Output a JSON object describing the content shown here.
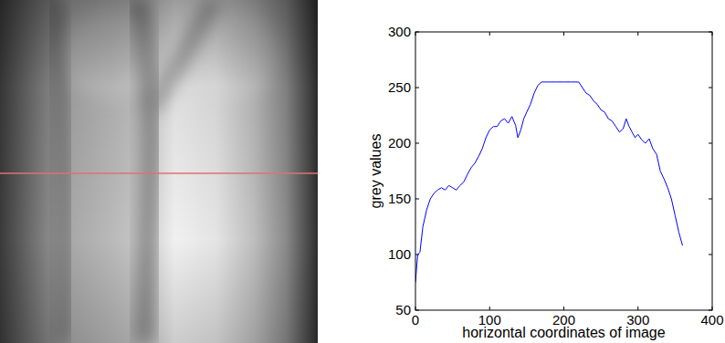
{
  "chart_data": {
    "type": "line",
    "xlabel": "horizontal coordinates of image",
    "ylabel": "grey values",
    "x": [
      0,
      3,
      6,
      10,
      15,
      20,
      25,
      30,
      35,
      40,
      45,
      50,
      55,
      60,
      65,
      70,
      75,
      80,
      85,
      90,
      95,
      100,
      105,
      110,
      115,
      120,
      125,
      130,
      135,
      138,
      142,
      146,
      150,
      155,
      160,
      165,
      170,
      175,
      180,
      190,
      200,
      210,
      220,
      225,
      230,
      235,
      240,
      245,
      250,
      255,
      260,
      265,
      270,
      275,
      280,
      284,
      288,
      292,
      296,
      300,
      305,
      310,
      315,
      320,
      325,
      330,
      335,
      340,
      345,
      350,
      355,
      360
    ],
    "values": [
      75,
      100,
      102,
      125,
      140,
      150,
      155,
      158,
      160,
      158,
      162,
      160,
      158,
      162,
      165,
      172,
      178,
      182,
      188,
      195,
      205,
      212,
      215,
      215,
      220,
      222,
      218,
      224,
      216,
      205,
      212,
      222,
      228,
      235,
      245,
      252,
      255,
      255,
      255,
      255,
      255,
      255,
      255,
      250,
      245,
      243,
      238,
      235,
      230,
      228,
      222,
      220,
      215,
      210,
      213,
      222,
      215,
      210,
      205,
      208,
      203,
      200,
      204,
      195,
      190,
      175,
      168,
      160,
      150,
      135,
      120,
      108
    ],
    "color": "#0000ff",
    "xlim": [
      0,
      400
    ],
    "ylim": [
      50,
      300
    ],
    "xticks": [
      0,
      100,
      200,
      300,
      400
    ],
    "yticks": [
      50,
      100,
      150,
      200,
      250,
      300
    ],
    "grid": false
  }
}
